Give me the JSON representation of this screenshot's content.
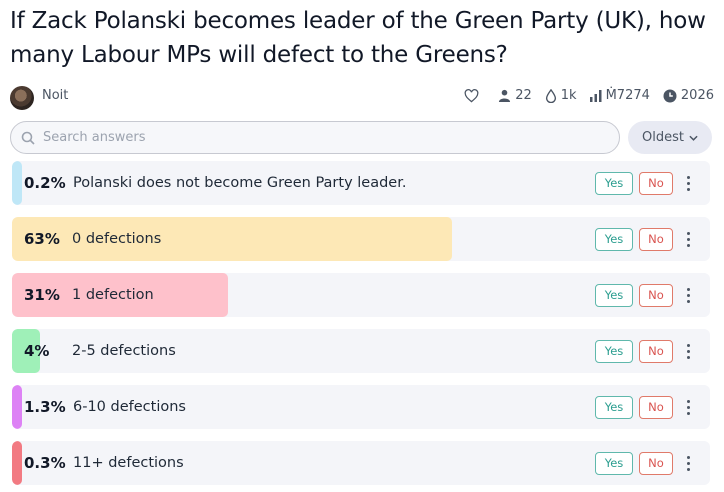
{
  "question": {
    "title": "If Zack Polanski becomes leader of the Green Party (UK), how many Labour MPs will defect to the Greens?"
  },
  "meta": {
    "author": "Noit",
    "traders": "22",
    "volume": "1k",
    "liquidity": "Ṁ7274",
    "close": "2026",
    "icons": [
      "heart-icon",
      "user-icon",
      "droplet-icon",
      "bar-chart-icon",
      "clock-icon"
    ]
  },
  "search": {
    "placeholder": "Search answers"
  },
  "sort": {
    "label": "Oldest"
  },
  "buttons": {
    "yes": "Yes",
    "no": "No"
  },
  "answers": [
    {
      "pct": "0.2%",
      "label": "Polanski does not become Green Party leader.",
      "value": 0.2,
      "color": "#bfe7f7"
    },
    {
      "pct": "63%",
      "label": "0 defections",
      "value": 63,
      "color": "#fde8b6"
    },
    {
      "pct": "31%",
      "label": "1 defection",
      "value": 31,
      "color": "#fec1cb"
    },
    {
      "pct": "4%",
      "label": "2-5 defections",
      "value": 4,
      "color": "#9ff0b8"
    },
    {
      "pct": "1.3%",
      "label": "6-10 defections",
      "value": 1.3,
      "color": "#dd82f5"
    },
    {
      "pct": "0.3%",
      "label": "11+ defections",
      "value": 0.3,
      "color": "#f27a82"
    }
  ]
}
